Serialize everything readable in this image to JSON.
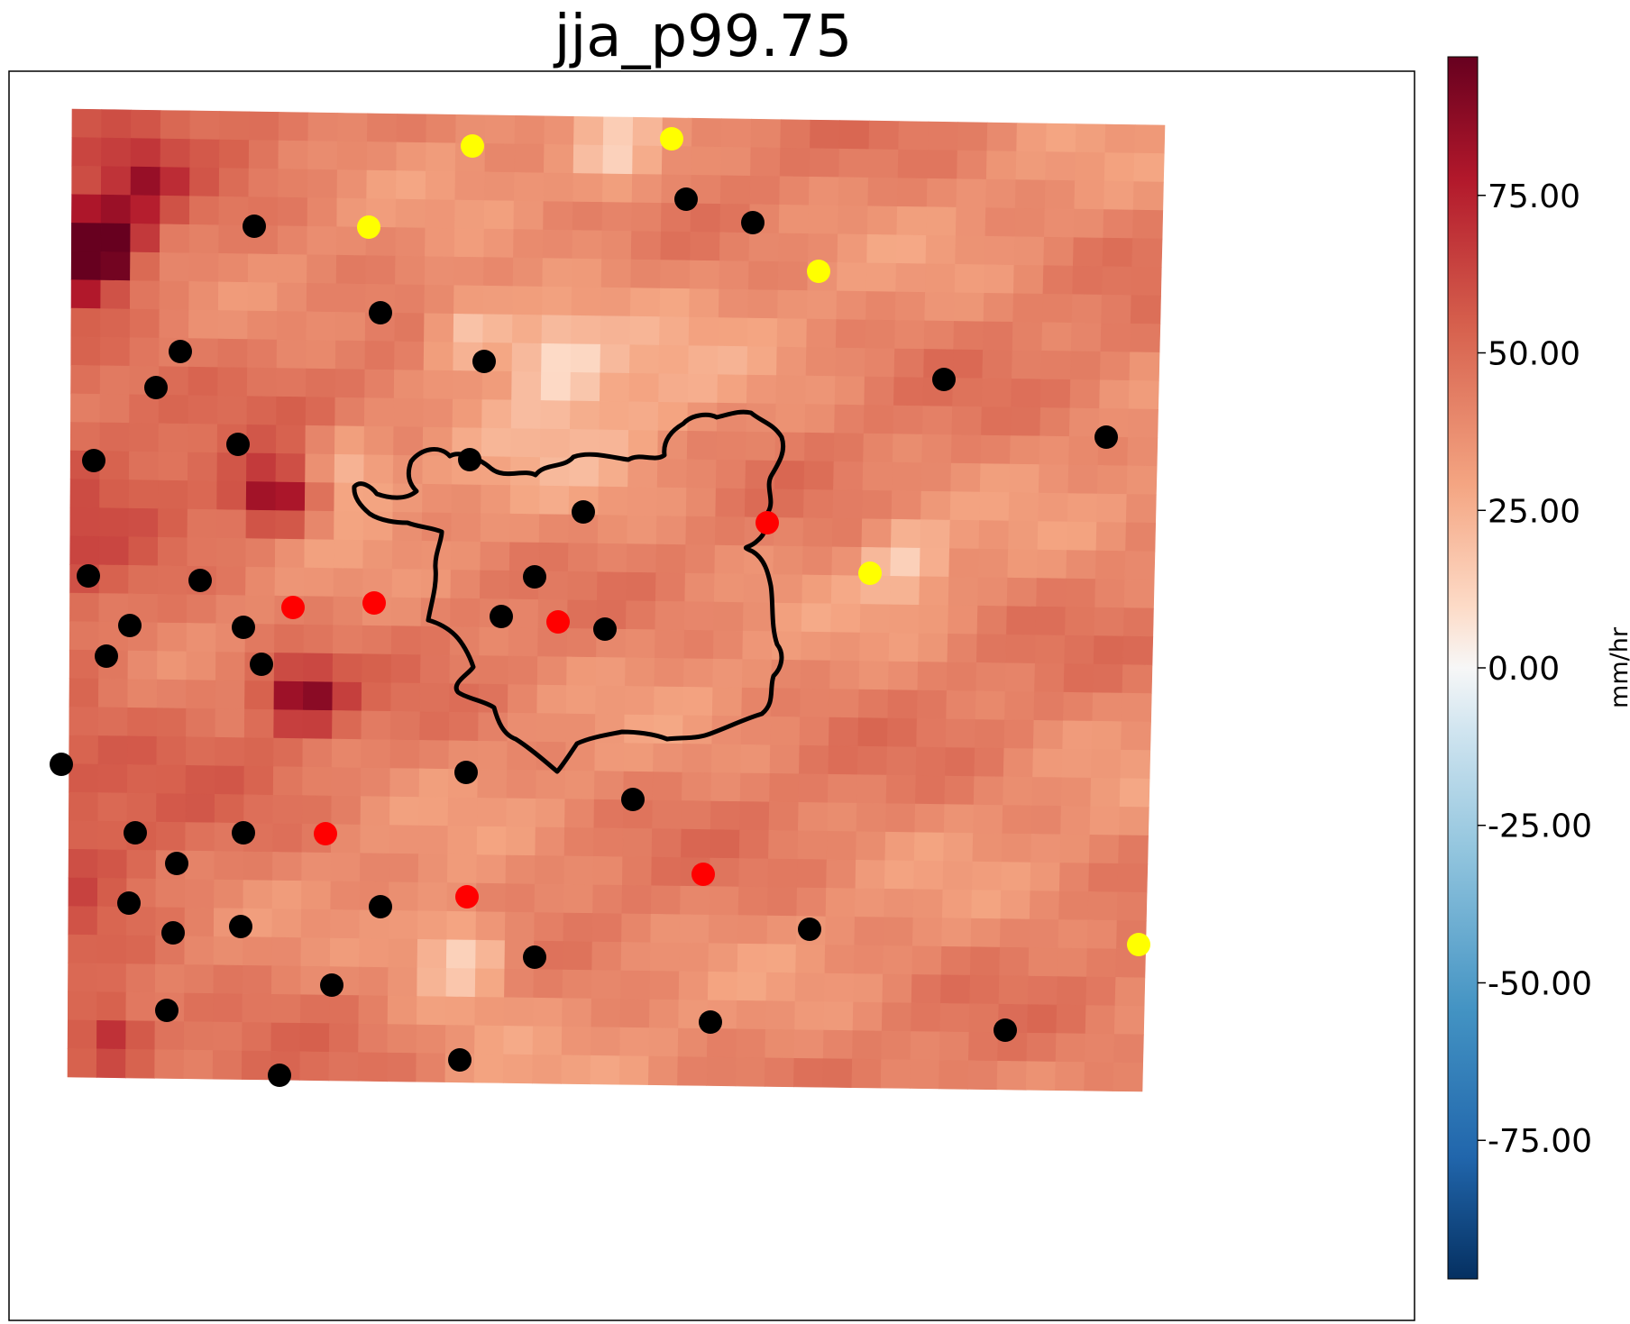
{
  "figure": {
    "title": "jja_p99.75",
    "colorbar": {
      "label": "mm/hr",
      "colormap": "RdBu_r",
      "vmin": -97,
      "vmax": 97,
      "ticks": [
        {
          "value": 75,
          "label": "75.00"
        },
        {
          "value": 50,
          "label": "50.00"
        },
        {
          "value": 25,
          "label": "25.00"
        },
        {
          "value": 0,
          "label": "0.00"
        },
        {
          "value": -25,
          "label": "-25.00"
        },
        {
          "value": -50,
          "label": "-50.00"
        },
        {
          "value": -75,
          "label": "-75.00"
        }
      ]
    }
  },
  "chart_data": {
    "type": "heatmap",
    "description_colors": {
      "strong": "#b2182b",
      "neutral": "#f7f7f7"
    },
    "grid_rows": 34,
    "grid_cols": 37,
    "value_range": [
      10,
      97
    ],
    "hotspots": [
      {
        "row": 5,
        "col": 0,
        "value": 97
      },
      {
        "row": 4,
        "col": 0,
        "value": 82
      },
      {
        "row": 4,
        "col": 1,
        "value": 82
      },
      {
        "row": 13,
        "col": 6,
        "value": 75
      },
      {
        "row": 13,
        "col": 7,
        "value": 72
      },
      {
        "row": 20,
        "col": 7,
        "value": 74
      },
      {
        "row": 20,
        "col": 8,
        "value": 72
      },
      {
        "row": 2,
        "col": 2,
        "value": 72
      },
      {
        "row": 32,
        "col": 1,
        "value": 74
      }
    ],
    "cool_spots": [
      {
        "row": 1,
        "col": 18,
        "value": 14
      },
      {
        "row": 7,
        "col": 13,
        "value": 14
      },
      {
        "row": 8,
        "col": 16,
        "value": 13
      },
      {
        "row": 15,
        "col": 28,
        "value": 18
      },
      {
        "row": 29,
        "col": 13,
        "value": 15
      },
      {
        "row": 12,
        "col": 9,
        "value": 16
      }
    ],
    "markers": {
      "black": [
        [
          282,
          251
        ],
        [
          422,
          347
        ],
        [
          200,
          390
        ],
        [
          173,
          430
        ],
        [
          537,
          401
        ],
        [
          761,
          221
        ],
        [
          835,
          247
        ],
        [
          1047,
          421
        ],
        [
          1227,
          485
        ],
        [
          104,
          511
        ],
        [
          264,
          493
        ],
        [
          521,
          510
        ],
        [
          647,
          568
        ],
        [
          98,
          639
        ],
        [
          222,
          644
        ],
        [
          593,
          640
        ],
        [
          144,
          694
        ],
        [
          270,
          696
        ],
        [
          118,
          728
        ],
        [
          290,
          737
        ],
        [
          556,
          684
        ],
        [
          671,
          698
        ],
        [
          68,
          848
        ],
        [
          517,
          857
        ],
        [
          702,
          887
        ],
        [
          150,
          924
        ],
        [
          270,
          924
        ],
        [
          196,
          958
        ],
        [
          143,
          1002
        ],
        [
          422,
          1006
        ],
        [
          192,
          1035
        ],
        [
          267,
          1028
        ],
        [
          898,
          1031
        ],
        [
          593,
          1062
        ],
        [
          368,
          1093
        ],
        [
          185,
          1121
        ],
        [
          788,
          1134
        ],
        [
          1115,
          1143
        ],
        [
          510,
          1176
        ],
        [
          310,
          1193
        ]
      ],
      "yellow": [
        [
          524,
          162
        ],
        [
          745,
          154
        ],
        [
          409,
          252
        ],
        [
          908,
          301
        ],
        [
          965,
          636
        ],
        [
          1263,
          1048
        ]
      ],
      "red": [
        [
          851,
          580
        ],
        [
          325,
          674
        ],
        [
          415,
          669
        ],
        [
          619,
          690
        ],
        [
          361,
          925
        ],
        [
          780,
          970
        ],
        [
          518,
          995
        ]
      ]
    }
  }
}
